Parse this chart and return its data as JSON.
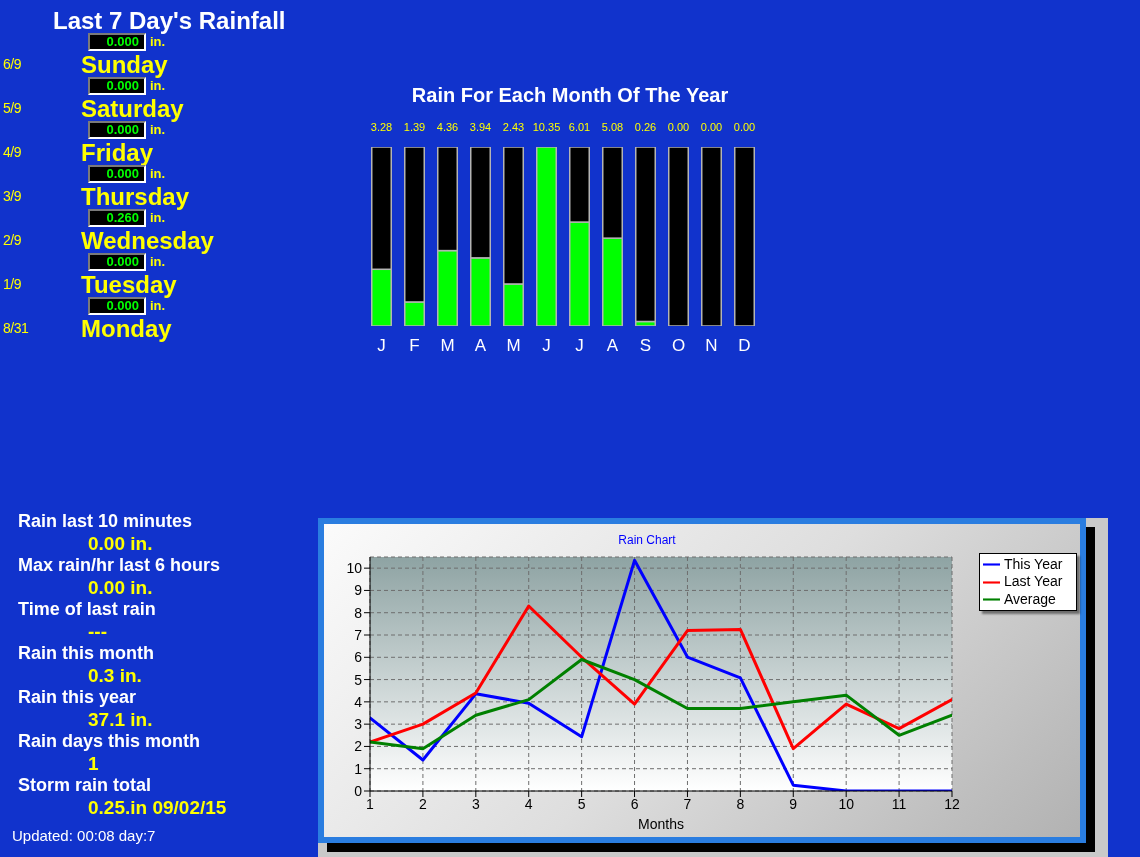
{
  "chart_data": [
    {
      "type": "other",
      "title": "Last 7 Day's Rainfall",
      "categories": [
        "Sunday",
        "Saturday",
        "Friday",
        "Thursday",
        "Wednesday",
        "Tuesday",
        "Monday"
      ],
      "value_labels": [
        "0.000",
        "0.000",
        "0.000",
        "0.000",
        "0.260",
        "0.000",
        "0.000"
      ],
      "ylabel": "in.",
      "annotations": [
        "6/9",
        "5/9",
        "4/9",
        "3/9",
        "2/9",
        "1/9",
        "8/31"
      ]
    },
    {
      "type": "bar",
      "stacked": true,
      "title": "Rain For Each Month Of The Year",
      "categories": [
        "J",
        "F",
        "M",
        "A",
        "M",
        "J",
        "J",
        "A",
        "S",
        "O",
        "N",
        "D"
      ],
      "series": [
        {
          "color": "#00ff00",
          "values": [
            3.28,
            1.39,
            4.36,
            3.94,
            2.43,
            10.35,
            6.01,
            5.08,
            0.26,
            0,
            0,
            0
          ],
          "value_labels": [
            "3.28",
            "1.39",
            "4.36",
            "3.94",
            "2.43",
            "10.35",
            "6.01",
            "5.08",
            "0.26",
            "0.00",
            "0.00",
            "0.00"
          ]
        },
        {
          "color": "#000000",
          "values": [
            7.07,
            8.96,
            5.99,
            6.41,
            7.92,
            0,
            4.34,
            5.27,
            10.09,
            10.35,
            10.35,
            10.35
          ]
        }
      ]
    },
    {
      "type": "other",
      "categories": [
        "Rain last 10 minutes",
        "Max rain/hr last 6 hours",
        "Time of last rain",
        "Rain this month",
        "Rain this year",
        "Rain days this month",
        "Storm rain total"
      ],
      "value_labels": [
        "0.00 in.",
        "0.00 in.",
        "---",
        "0.3 in.",
        "37.1 in.",
        "1",
        "0.25.in 09/02/15"
      ],
      "annotations": [
        "Updated: 00:08 day:7"
      ]
    },
    {
      "type": "line",
      "title": "Rain Chart",
      "xlabel": "Months",
      "x": [
        1,
        2,
        3,
        4,
        5,
        6,
        7,
        8,
        9,
        10,
        11,
        12
      ],
      "xlim": [
        1,
        12
      ],
      "xticks": [
        1,
        2,
        3,
        4,
        5,
        6,
        7,
        8,
        9,
        10,
        11,
        12
      ],
      "ylim": [
        0,
        10.5
      ],
      "yticks": [
        0,
        1,
        2,
        3,
        4,
        5,
        6,
        7,
        8,
        9,
        10
      ],
      "grid": true,
      "legend": "top right",
      "series": [
        {
          "name": "This Year",
          "color": "#0000ff",
          "values": [
            3.28,
            1.39,
            4.36,
            3.94,
            2.43,
            10.35,
            6.01,
            5.08,
            0.26,
            0,
            0,
            0
          ]
        },
        {
          "name": "Last Year",
          "color": "#ff0000",
          "values": [
            2.2,
            3.0,
            4.4,
            8.3,
            6.0,
            3.9,
            7.2,
            7.25,
            1.9,
            3.9,
            2.8,
            4.1
          ]
        },
        {
          "name": "Average",
          "color": "#008000",
          "values": [
            2.2,
            1.9,
            3.4,
            4.1,
            5.9,
            5.0,
            3.7,
            3.7,
            4.0,
            4.3,
            2.5,
            3.4
          ]
        }
      ]
    }
  ]
}
